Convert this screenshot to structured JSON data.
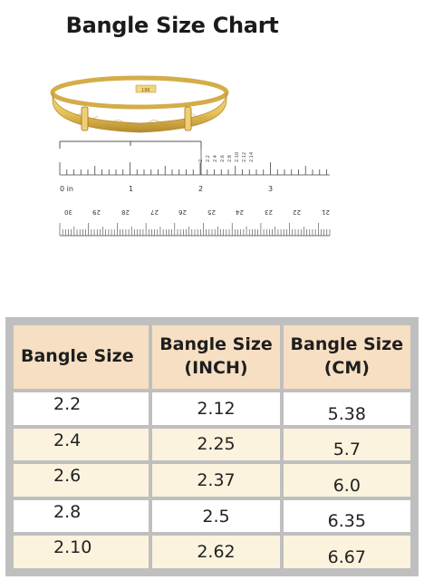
{
  "title": "Bangle Size Chart",
  "bangle": {
    "stamp": "18K",
    "colors": {
      "gold": "#e8c25a",
      "gold_dark": "#b48a2c",
      "gold_light": "#f6dc8a"
    }
  },
  "ruler_inch": {
    "labels": [
      "0 in",
      "1",
      "2",
      "3"
    ]
  },
  "ruler_sizes": {
    "labels": [
      "2",
      "2.2",
      "2.4",
      "2.6",
      "2.8",
      "2.10",
      "2.12",
      "2.14"
    ]
  },
  "ruler_cm": {
    "labels": [
      "30",
      "29",
      "28",
      "27",
      "26",
      "25",
      "24",
      "23",
      "22",
      "21"
    ]
  },
  "table": {
    "headers": [
      {
        "line1": "Bangle Size",
        "line2": ""
      },
      {
        "line1": "Bangle Size",
        "line2": "(INCH)"
      },
      {
        "line1": "Bangle Size",
        "line2": "(CM)"
      }
    ],
    "rows": [
      {
        "size": "2.2",
        "inch": "2.12",
        "cm": "5.38"
      },
      {
        "size": "2.4",
        "inch": "2.25",
        "cm": "5.7"
      },
      {
        "size": "2.6",
        "inch": "2.37",
        "cm": "6.0"
      },
      {
        "size": "2.8",
        "inch": "2.5",
        "cm": "6.35"
      },
      {
        "size": "2.10",
        "inch": "2.62",
        "cm": "6.67"
      }
    ]
  }
}
